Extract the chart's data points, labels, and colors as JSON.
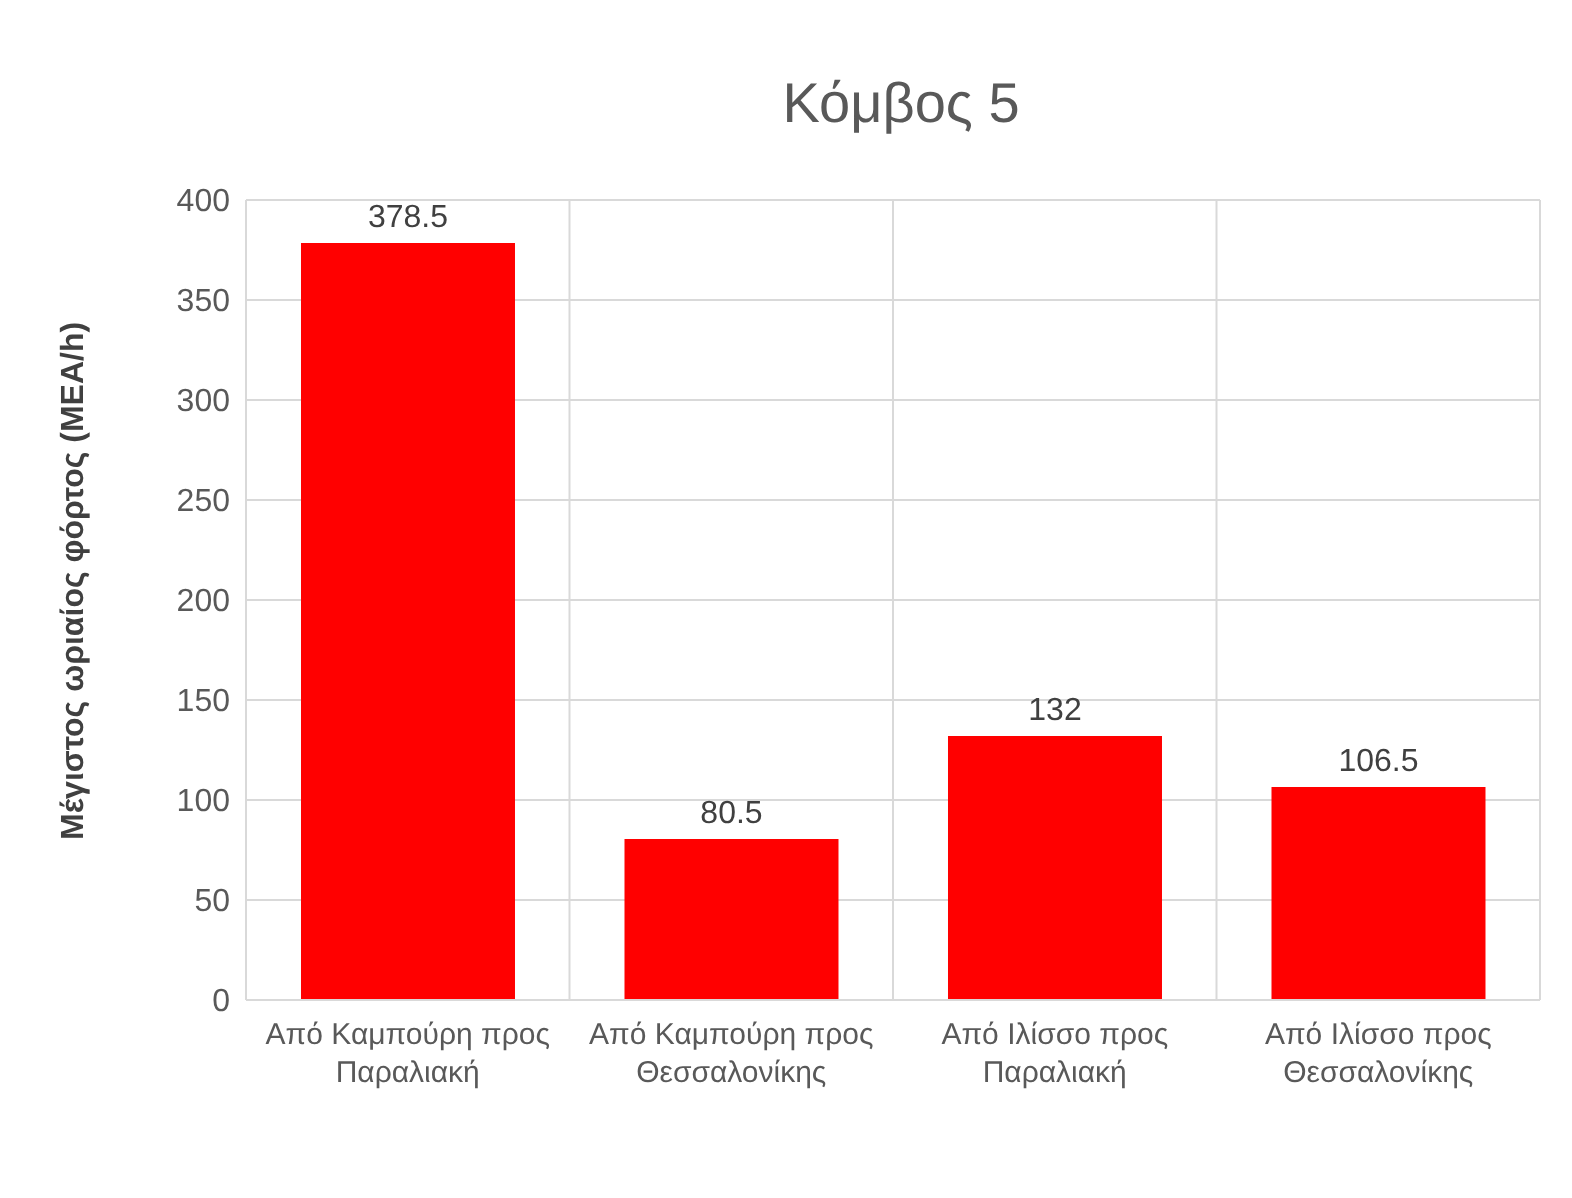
{
  "chart_data": {
    "type": "bar",
    "title": "Κόμβος 5",
    "ylabel": "Μέγιστος ωριαίος φόρτος (MEA/h)",
    "categories": [
      "Από Καμπούρη προς Παραλιακή",
      "Από Καμπούρη προς Θεσσαλονίκης",
      "Από Ιλίσσο προς Παραλιακή",
      "Από Ιλίσσο προς Θεσσαλονίκης"
    ],
    "values": [
      378.5,
      80.5,
      132,
      106.5
    ],
    "color": "#ff0000",
    "ylim": [
      0,
      400
    ],
    "yticks": [
      0,
      50,
      100,
      150,
      200,
      250,
      300,
      350,
      400
    ],
    "grid": true,
    "data_labels": true,
    "legend": false
  }
}
